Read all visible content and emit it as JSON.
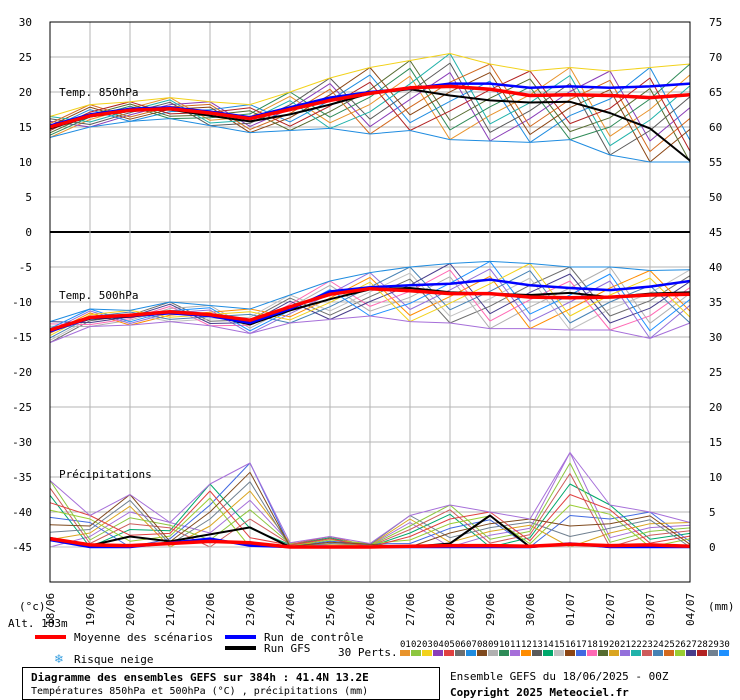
{
  "labels": {
    "temp850": "Temp. 850hPa",
    "temp500": "Temp. 500hPa",
    "precip": "Précipitations",
    "unit_left": "(°c)",
    "unit_right": "(mm)",
    "altitude": "Alt. 183m"
  },
  "legend": {
    "mean": "Moyenne des scénarios",
    "control": "Run de contrôle",
    "gfs": "Run GFS",
    "snow": "Risque neige",
    "perts": "30 Perts.",
    "pert_numbers": [
      "01",
      "02",
      "03",
      "04",
      "05",
      "06",
      "07",
      "08",
      "09",
      "10",
      "11",
      "12",
      "13",
      "14",
      "15",
      "16",
      "17",
      "18",
      "19",
      "20",
      "21",
      "22",
      "23",
      "24",
      "25",
      "26",
      "27",
      "28",
      "29",
      "30"
    ],
    "pert_colors": [
      "#e8932b",
      "#8dc63f",
      "#f2d21b",
      "#8a3db8",
      "#e04040",
      "#6e6e6e",
      "#1f8ce0",
      "#7f4a1e",
      "#b0b0b0",
      "#2e8b57",
      "#a66fd9",
      "#ff8c00",
      "#5a5a5a",
      "#00a86b",
      "#c0c0c0",
      "#8b4513",
      "#4169e1",
      "#ff69b4",
      "#556b2f",
      "#daa520",
      "#9370db",
      "#20b2aa",
      "#cd5c5c",
      "#4682b4",
      "#d2691e",
      "#9acd32",
      "#483d8b",
      "#b22222",
      "#708090",
      "#1e90ff"
    ],
    "mean_color": "#ff0000",
    "control_color": "#0000ff",
    "gfs_color": "#000000"
  },
  "footer": {
    "title": "Diagramme des ensembles GEFS sur 384h : 41.4N 13.2E",
    "subtitle": "Températures 850hPa et 500hPa (°C) , précipitations (mm)",
    "run": "Ensemble GEFS du 18/06/2025 - 00Z",
    "copyright": "Copyright 2025 Meteociel.fr"
  },
  "chart_data": {
    "type": "line",
    "x": [
      "18/06",
      "19/06",
      "20/06",
      "21/06",
      "22/06",
      "23/06",
      "24/06",
      "25/06",
      "26/06",
      "27/06",
      "28/06",
      "29/06",
      "30/06",
      "01/07",
      "02/07",
      "03/07",
      "04/07"
    ],
    "left_ticks": [
      30,
      25,
      20,
      15,
      10,
      5,
      0,
      -5,
      -10,
      -15,
      -20,
      -25,
      -30,
      -35,
      -40,
      -45
    ],
    "right_ticks": [
      75,
      70,
      65,
      60,
      55,
      50,
      45,
      40,
      35,
      30,
      25,
      20,
      15,
      10,
      5,
      0
    ],
    "panels": [
      {
        "name": "Temp. 850hPa",
        "ylim": [
          0,
          30
        ],
        "mean": [
          15.0,
          16.6,
          17.4,
          17.6,
          17.0,
          16.2,
          17.5,
          18.8,
          19.8,
          20.6,
          20.8,
          20.4,
          19.5,
          19.6,
          19.5,
          19.2,
          19.6
        ],
        "control": [
          15.2,
          16.8,
          17.6,
          17.8,
          17.2,
          16.4,
          17.8,
          19.2,
          20.0,
          20.5,
          21.2,
          21.2,
          20.6,
          20.8,
          20.6,
          20.8,
          21.2
        ],
        "gfs": [
          14.8,
          16.5,
          17.3,
          17.5,
          16.6,
          15.8,
          16.8,
          18.2,
          19.8,
          20.4,
          19.5,
          18.8,
          18.5,
          18.6,
          17.0,
          14.8,
          10.2
        ],
        "spread_max": [
          16.5,
          18.2,
          18.6,
          19.2,
          18.6,
          18.2,
          20.0,
          22.0,
          23.5,
          24.5,
          25.5,
          24.0,
          23.0,
          23.5,
          23.0,
          23.5,
          24.0
        ],
        "spread_min": [
          13.5,
          15.0,
          15.8,
          16.2,
          15.2,
          14.2,
          14.5,
          14.8,
          14.0,
          14.5,
          13.2,
          13.0,
          12.8,
          13.2,
          11.0,
          10.0,
          10.0
        ]
      },
      {
        "name": "Temp. 500hPa",
        "ylim": [
          -20,
          0
        ],
        "mean": [
          -14.0,
          -12.2,
          -11.9,
          -11.4,
          -11.8,
          -12.6,
          -10.7,
          -8.9,
          -8.1,
          -8.4,
          -8.8,
          -8.8,
          -9.3,
          -9.4,
          -9.3,
          -9.0,
          -8.9
        ],
        "control": [
          -14.2,
          -12.3,
          -12.0,
          -11.6,
          -12.0,
          -13.0,
          -11.0,
          -8.5,
          -7.9,
          -7.6,
          -7.4,
          -6.8,
          -7.6,
          -8.0,
          -8.3,
          -7.8,
          -7.0
        ],
        "gfs": [
          -14.1,
          -12.4,
          -12.1,
          -11.5,
          -11.9,
          -13.2,
          -11.2,
          -9.6,
          -8.2,
          -8.0,
          -8.6,
          -8.8,
          -9.0,
          -8.7,
          -9.3,
          -8.8,
          -8.6
        ],
        "spread_max": [
          -12.8,
          -11.0,
          -11.2,
          -10.0,
          -10.5,
          -11.0,
          -9.0,
          -7.0,
          -5.8,
          -5.0,
          -4.5,
          -4.2,
          -4.5,
          -5.0,
          -5.0,
          -5.5,
          -5.4
        ],
        "spread_min": [
          -15.8,
          -13.5,
          -13.3,
          -12.8,
          -13.4,
          -14.5,
          -13.0,
          -12.5,
          -12.0,
          -12.8,
          -13.0,
          -13.8,
          -13.8,
          -14.0,
          -14.0,
          -15.2,
          -13.0
        ]
      },
      {
        "name": "Précipitations",
        "ylim": [
          0,
          10
        ],
        "mean": [
          1.2,
          0.3,
          0.2,
          0.5,
          0.8,
          0.6,
          0.0,
          0.0,
          0.0,
          0.1,
          0.2,
          0.2,
          0.1,
          0.4,
          0.2,
          0.3,
          0.1
        ],
        "control": [
          1.0,
          0.0,
          0.0,
          0.6,
          1.2,
          0.2,
          0.0,
          0.0,
          0.0,
          0.0,
          0.0,
          0.0,
          0.0,
          0.5,
          0.0,
          0.0,
          0.0
        ],
        "gfs": [
          1.3,
          0.2,
          1.5,
          0.8,
          1.8,
          2.8,
          0.0,
          0.0,
          0.0,
          0.0,
          0.5,
          4.5,
          0.0,
          0.5,
          0.0,
          0.0,
          0.0
        ],
        "spread_max": [
          9.5,
          4.5,
          7.5,
          3.5,
          9.0,
          12.0,
          0.6,
          1.5,
          0.5,
          4.5,
          6.0,
          5.0,
          4.0,
          13.5,
          6.0,
          5.0,
          3.5
        ],
        "spread_min": [
          0,
          0,
          0,
          0,
          0,
          0,
          0,
          0,
          0,
          0,
          0,
          0,
          0,
          0,
          0,
          0,
          0
        ]
      }
    ]
  }
}
